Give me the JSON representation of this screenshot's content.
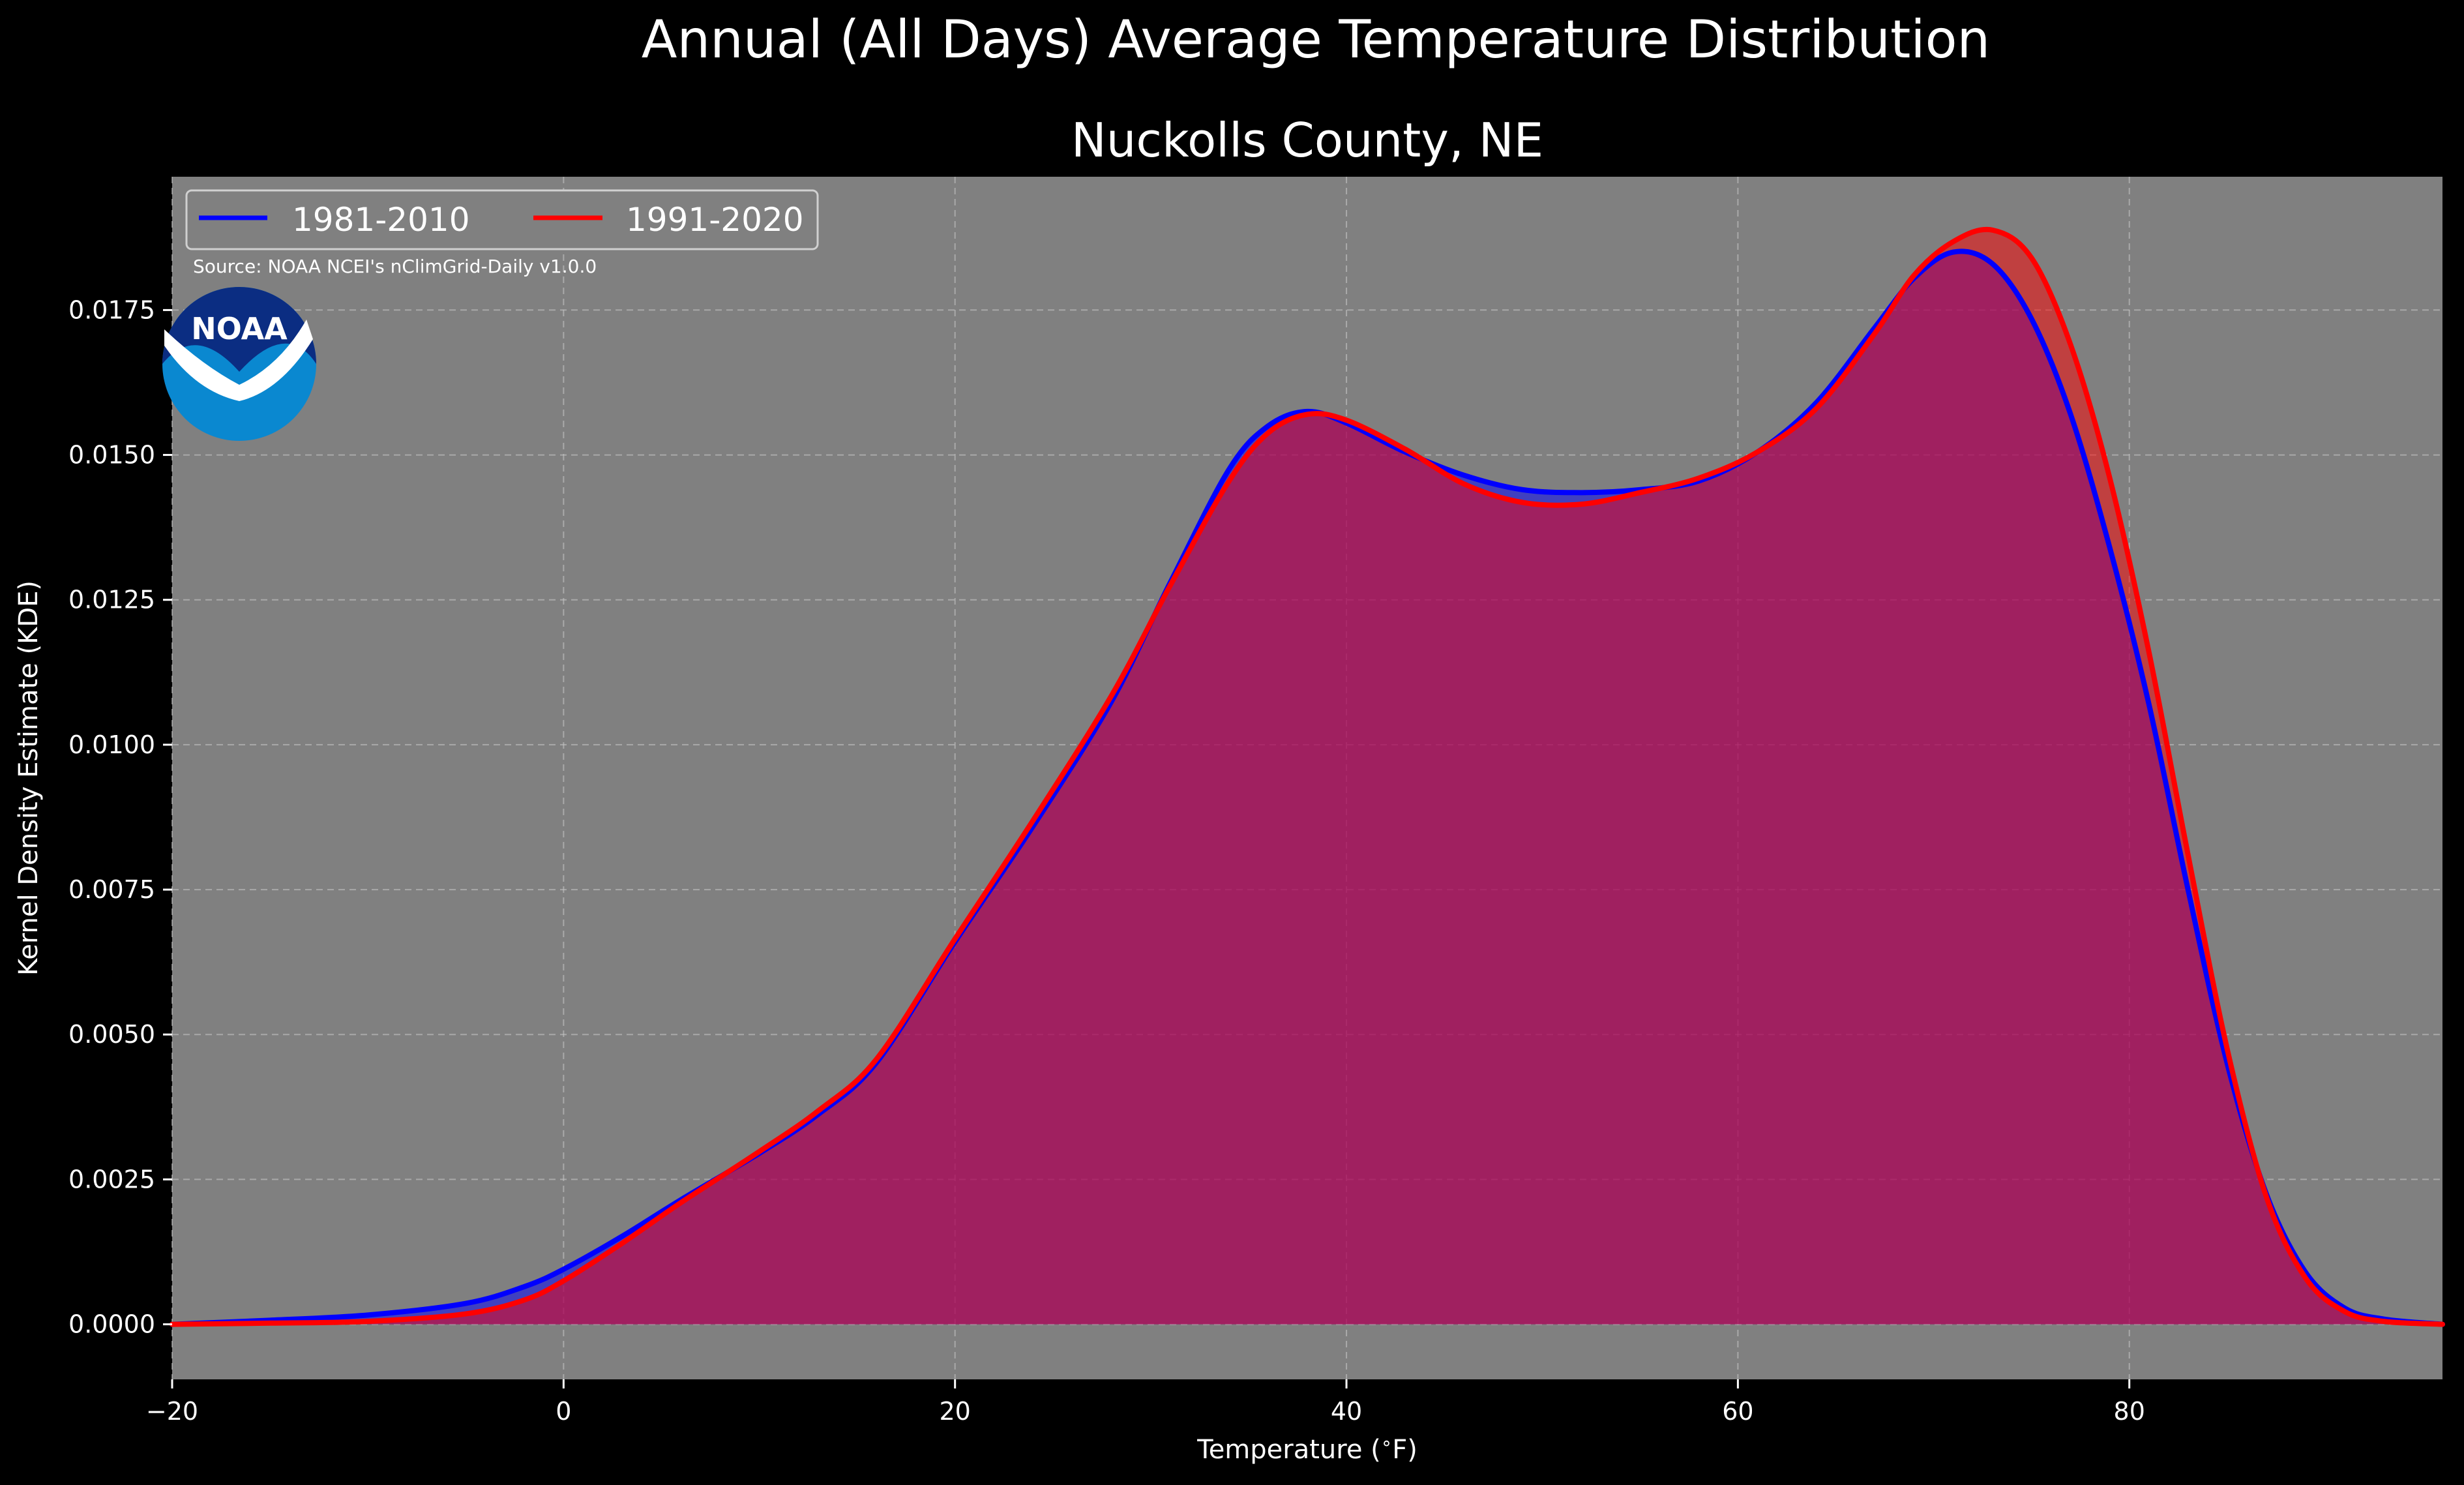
{
  "chart_data": {
    "type": "area",
    "suptitle": "Annual (All Days) Average Temperature Distribution",
    "title": "Nuckolls County, NE",
    "xlabel": "Temperature ($^\\circ$F)",
    "ylabel": "Kernel Density Estimate (KDE)",
    "source_note": "Source: NOAA NCEI's nClimGrid-Daily v1.0.0",
    "logo_text": "NOAA",
    "xlim": [
      -20,
      96
    ],
    "ylim": [
      -0.00095,
      0.0198
    ],
    "x_ticks": [
      -20,
      0,
      20,
      40,
      60,
      80
    ],
    "x_tick_labels": [
      "−20",
      "0",
      "20",
      "40",
      "60",
      "80"
    ],
    "y_ticks": [
      0.0,
      0.0025,
      0.005,
      0.0075,
      0.01,
      0.0125,
      0.015,
      0.0175
    ],
    "y_tick_labels": [
      "0.0000",
      "0.0025",
      "0.0050",
      "0.0075",
      "0.0100",
      "0.0125",
      "0.0150",
      "0.0175"
    ],
    "grid": true,
    "legend_position": "top-left",
    "background_color": "#000000",
    "plot_background_color": "#808080",
    "text_color": "#ffffff",
    "grid_color": "#c4c4c4",
    "series": [
      {
        "name": "1981-2010",
        "color": "#0000ff",
        "x": [
          -20,
          -15,
          -10,
          -5,
          -2,
          0,
          3,
          6,
          10,
          13,
          16,
          20,
          24,
          28,
          31,
          34,
          36,
          38,
          40,
          43,
          46,
          49,
          52,
          55,
          58,
          61,
          64,
          67,
          69,
          71,
          73,
          75,
          77,
          79,
          81,
          83,
          85,
          87,
          89,
          91,
          93,
          96
        ],
        "y": [
          0.0,
          7e-05,
          0.00016,
          0.00036,
          0.00065,
          0.00095,
          0.00152,
          0.00215,
          0.00295,
          0.00362,
          0.00452,
          0.0066,
          0.0086,
          0.01075,
          0.0128,
          0.01475,
          0.0155,
          0.01575,
          0.01555,
          0.01505,
          0.01465,
          0.0144,
          0.01435,
          0.0144,
          0.01455,
          0.01505,
          0.0159,
          0.0172,
          0.01805,
          0.0185,
          0.0183,
          0.01735,
          0.0157,
          0.0134,
          0.0107,
          0.0075,
          0.0045,
          0.00225,
          0.0009,
          0.00028,
          9e-05,
          0.0
        ]
      },
      {
        "name": "1991-2020",
        "color": "#ff0000",
        "x": [
          -20,
          -15,
          -10,
          -5,
          -2,
          0,
          3,
          6,
          10,
          13,
          16,
          20,
          24,
          28,
          31,
          34,
          36,
          38,
          40,
          43,
          46,
          49,
          52,
          55,
          58,
          61,
          64,
          67,
          69,
          71,
          73,
          75,
          77,
          79,
          81,
          83,
          85,
          87,
          89,
          91,
          93,
          96
        ],
        "y": [
          0.0,
          2e-05,
          5e-05,
          0.00018,
          0.00042,
          0.00075,
          0.0014,
          0.0021,
          0.00298,
          0.00368,
          0.00458,
          0.00665,
          0.0087,
          0.01085,
          0.01275,
          0.01455,
          0.01538,
          0.0157,
          0.0156,
          0.0151,
          0.0145,
          0.01418,
          0.01415,
          0.01435,
          0.0146,
          0.01505,
          0.0158,
          0.0171,
          0.0181,
          0.01868,
          0.01888,
          0.0184,
          0.0169,
          0.0146,
          0.0116,
          0.0081,
          0.00475,
          0.0022,
          0.0008,
          0.00022,
          5e-05,
          0.0
        ]
      }
    ]
  }
}
